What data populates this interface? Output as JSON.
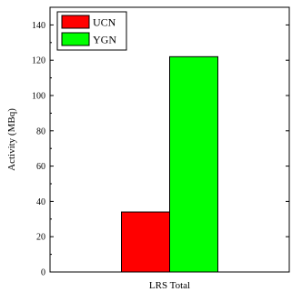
{
  "chart_data": {
    "type": "bar",
    "categories": [
      "LRS Total"
    ],
    "series": [
      {
        "name": "UCN",
        "values": [
          34
        ],
        "color": "#ff0000"
      },
      {
        "name": "YGN",
        "values": [
          122
        ],
        "color": "#00ff00"
      }
    ],
    "xlabel": "",
    "ylabel": "Activity (MBq)",
    "ylim": [
      0,
      150
    ],
    "yticks": [
      0,
      20,
      40,
      60,
      80,
      100,
      120,
      140
    ],
    "grid": false,
    "legend_position": "top-left"
  }
}
